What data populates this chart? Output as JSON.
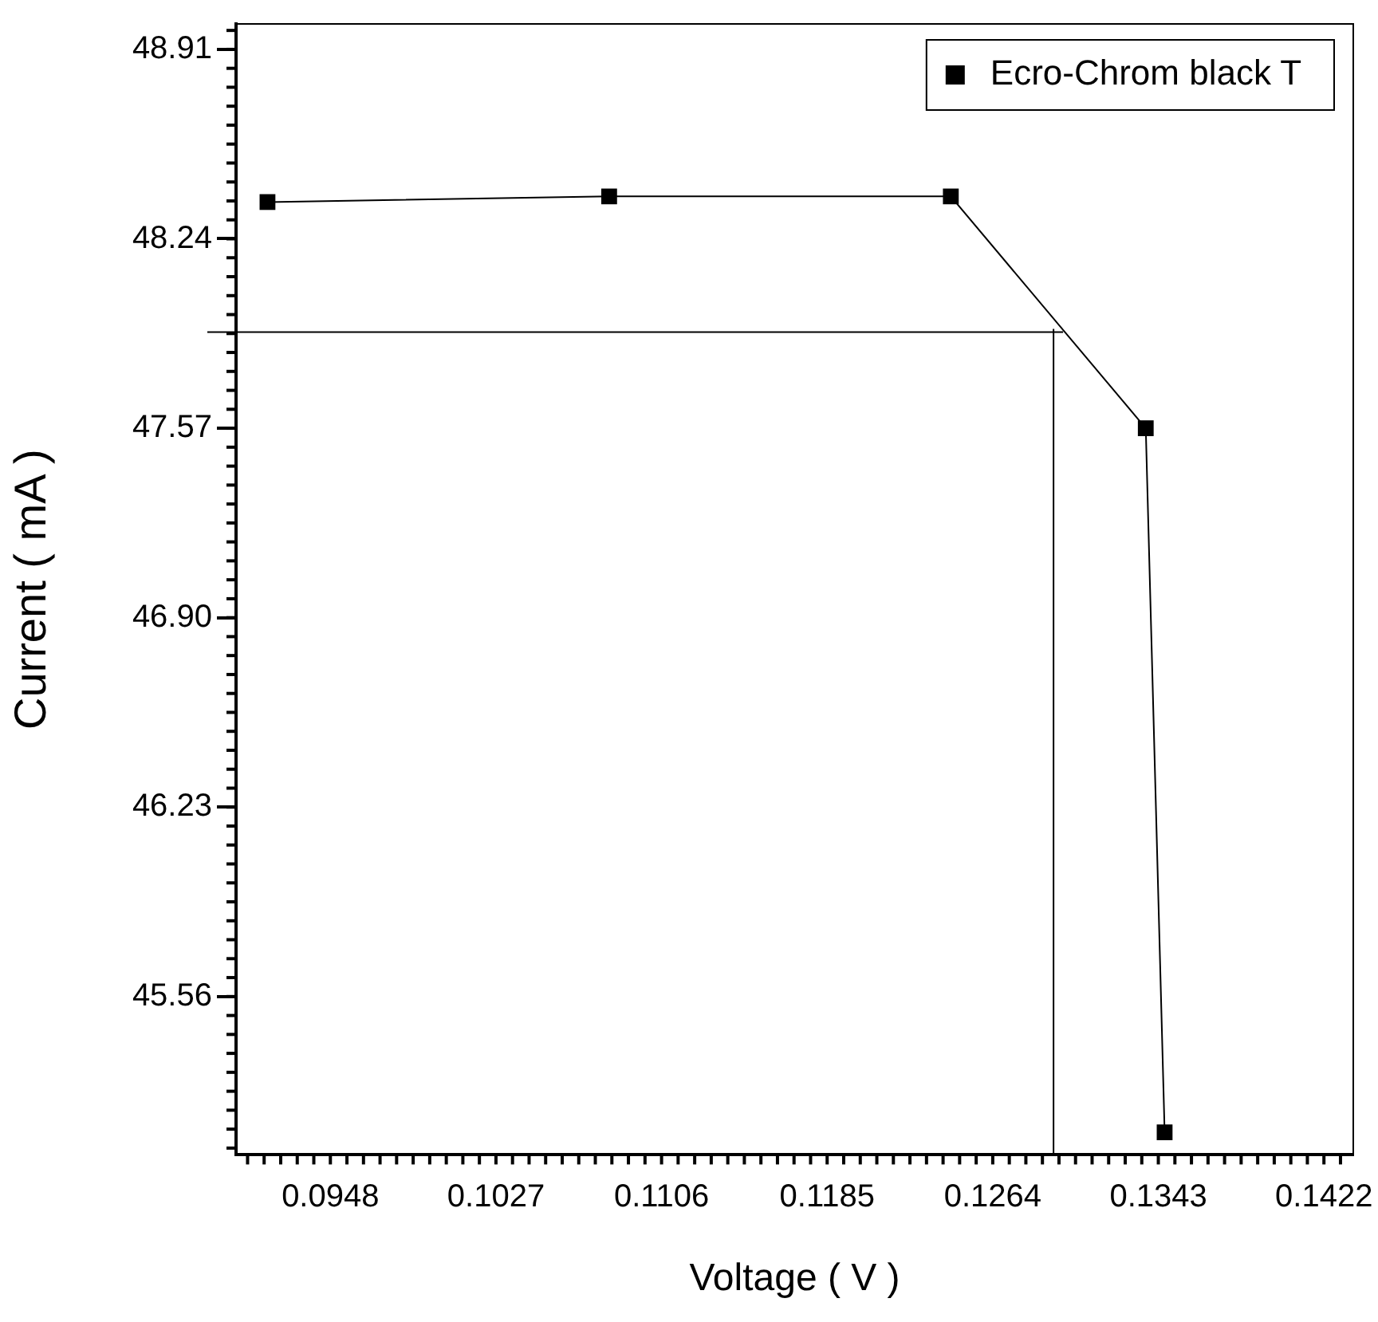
{
  "chart_data": {
    "type": "line",
    "xlabel": "Voltage ( V )",
    "ylabel": "Current ( mA )",
    "xlim": [
      0.0903,
      0.1436
    ],
    "xticks": [
      0.0948,
      0.1027,
      0.1106,
      0.1185,
      0.1264,
      0.1343,
      0.1422
    ],
    "ylim": [
      45.0,
      49.0
    ],
    "yticks": [
      45.56,
      46.23,
      {
        "value": 46.9,
        "label": "46.90"
      },
      47.57,
      48.24,
      48.91
    ],
    "series": [
      {
        "name": "Ecro-Chrom black T",
        "color": "#000000",
        "x": [
          0.0918,
          0.1081,
          0.1244,
          0.1337,
          0.1346
        ],
        "values": [
          48.37,
          48.39,
          48.39,
          47.57,
          45.08
        ]
      }
    ],
    "ref_lines": [
      {
        "axis": "y",
        "value": 47.91,
        "color": "#000000"
      },
      {
        "axis": "x",
        "value": 0.1293,
        "color": "#000000"
      }
    ],
    "marker": "square",
    "line_style": "solid",
    "legend": "top right",
    "grid": false
  }
}
